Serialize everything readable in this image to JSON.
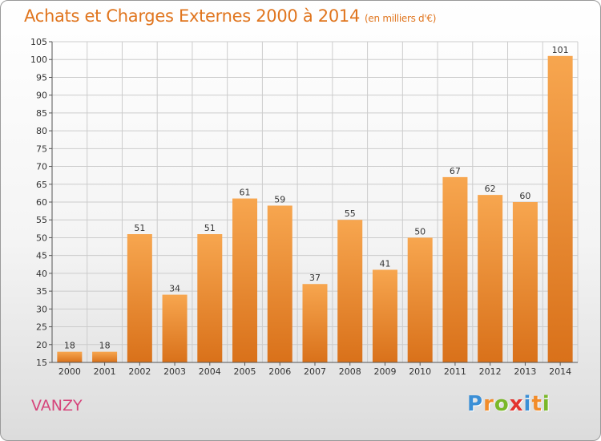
{
  "header": {
    "title": "Achats et Charges Externes 2000 à 2014",
    "unit": "(en milliers d'€)"
  },
  "footer": {
    "commune": "VANZY",
    "brand_letters": [
      {
        "char": "P",
        "color": "#3b8fd6"
      },
      {
        "char": "r",
        "color": "#f28c2a"
      },
      {
        "char": "o",
        "color": "#7ab829"
      },
      {
        "char": "x",
        "color": "#e3342f"
      },
      {
        "char": "i",
        "color": "#3b8fd6"
      },
      {
        "char": "t",
        "color": "#f28c2a"
      },
      {
        "char": "i",
        "color": "#7ab829"
      }
    ]
  },
  "chart_data": {
    "type": "bar",
    "categories": [
      "2000",
      "2001",
      "2002",
      "2003",
      "2004",
      "2005",
      "2006",
      "2007",
      "2008",
      "2009",
      "2010",
      "2011",
      "2012",
      "2013",
      "2014"
    ],
    "values": [
      18,
      18,
      51,
      34,
      51,
      61,
      59,
      37,
      55,
      41,
      50,
      67,
      62,
      60,
      101
    ],
    "ylim": [
      15,
      105
    ],
    "yticks": [
      15,
      20,
      25,
      30,
      35,
      40,
      45,
      50,
      55,
      60,
      65,
      70,
      75,
      80,
      85,
      90,
      95,
      100,
      105
    ],
    "grid": true,
    "bar_color_top": "#f7a64f",
    "bar_color_bottom": "#d9711a",
    "grid_color": "#cccccc",
    "text_color": "#333333"
  }
}
